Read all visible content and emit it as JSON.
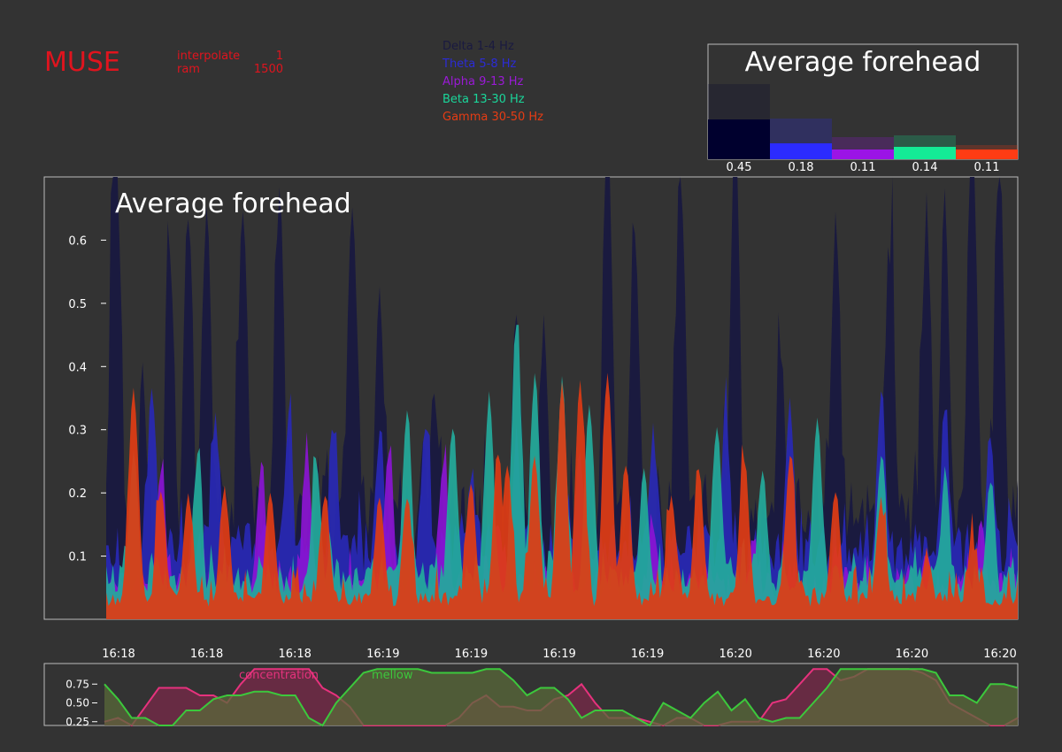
{
  "app": {
    "logo": "MUSE",
    "params": [
      {
        "name": "interpolate",
        "value": "1"
      },
      {
        "name": "ram",
        "value": "1500"
      }
    ]
  },
  "legend": [
    {
      "label": "Delta 1-4 Hz",
      "color": "#1a1a40"
    },
    {
      "label": "Theta 5-8 Hz",
      "color": "#2b2bd6"
    },
    {
      "label": "Alpha 9-13 Hz",
      "color": "#9a1ad6"
    },
    {
      "label": "Beta 13-30 Hz",
      "color": "#1ad69a"
    },
    {
      "label": "Gamma 30-50 Hz",
      "color": "#e63c14"
    }
  ],
  "chart_data": [
    {
      "type": "bar",
      "title": "Average forehead",
      "categories": [
        "Delta 1-4 Hz",
        "Theta 5-8 Hz",
        "Alpha 9-13 Hz",
        "Beta 13-30 Hz",
        "Gamma 30-50 Hz"
      ],
      "values": [
        0.45,
        0.18,
        0.11,
        0.14,
        0.11
      ],
      "value_labels": [
        "0.45",
        "0.18",
        "0.11",
        "0.14",
        "0.11"
      ],
      "previous_values": [
        0.85,
        0.46,
        0.25,
        0.27,
        0.16
      ],
      "colors": [
        "#00002e",
        "#2b2bff",
        "#9b14e6",
        "#14eb96",
        "#ff3c14"
      ]
    },
    {
      "type": "area",
      "title": "Average forehead",
      "stacking": "overlaid",
      "ylim": [
        0,
        0.7
      ],
      "yticks": [
        0.1,
        0.2,
        0.3,
        0.4,
        0.5,
        0.6
      ],
      "ytick_labels": [
        "0.1",
        "0.2",
        "0.3",
        "0.4",
        "0.5",
        "0.6"
      ],
      "xtick_labels": [
        "16:18",
        "16:18",
        "16:18",
        "16:19",
        "16:19",
        "16:19",
        "16:19",
        "16:20",
        "16:20",
        "16:20",
        "16:20"
      ],
      "x_range": [
        0,
        100
      ],
      "series": [
        {
          "name": "Delta 1-4 Hz",
          "color": "#1a1a3f",
          "baseline": 0.2,
          "amp": 0.38,
          "seed": 3,
          "peaks": [
            [
              1,
              0.82
            ],
            [
              4,
              0.35
            ],
            [
              7,
              0.52
            ],
            [
              9,
              0.61
            ],
            [
              11,
              0.62
            ],
            [
              15,
              0.63
            ],
            [
              19,
              0.65
            ],
            [
              27,
              0.63
            ],
            [
              30,
              0.47
            ],
            [
              36,
              0.34
            ],
            [
              45,
              0.48
            ],
            [
              48,
              0.41
            ],
            [
              52,
              0.33
            ],
            [
              55,
              0.79
            ],
            [
              58,
              0.6
            ],
            [
              63,
              0.7
            ],
            [
              69,
              0.72
            ],
            [
              74,
              0.4
            ],
            [
              80,
              0.58
            ],
            [
              86,
              0.56
            ],
            [
              90,
              0.62
            ],
            [
              92,
              0.63
            ],
            [
              95,
              0.82
            ],
            [
              98,
              0.69
            ]
          ]
        },
        {
          "name": "Theta 5-8 Hz",
          "color": "#2828b4",
          "baseline": 0.14,
          "amp": 0.16,
          "seed": 7,
          "peaks": [
            [
              5,
              0.34
            ],
            [
              12,
              0.3
            ],
            [
              20,
              0.29
            ],
            [
              25,
              0.29
            ],
            [
              30,
              0.27
            ],
            [
              35,
              0.3
            ],
            [
              40,
              0.2
            ],
            [
              45,
              0.27
            ],
            [
              52,
              0.24
            ],
            [
              60,
              0.28
            ],
            [
              68,
              0.3
            ],
            [
              75,
              0.32
            ],
            [
              85,
              0.3
            ],
            [
              92,
              0.3
            ],
            [
              97,
              0.27
            ]
          ]
        },
        {
          "name": "Alpha 9-13 Hz",
          "color": "#8a14d2",
          "baseline": 0.07,
          "amp": 0.13,
          "seed": 11,
          "peaks": [
            [
              6,
              0.22
            ],
            [
              17,
              0.23
            ],
            [
              22,
              0.24
            ],
            [
              31,
              0.26
            ],
            [
              37,
              0.24
            ],
            [
              43,
              0.14
            ],
            [
              60,
              0.14
            ],
            [
              71,
              0.12
            ],
            [
              80,
              0.1
            ],
            [
              90,
              0.09
            ],
            [
              96,
              0.14
            ]
          ]
        },
        {
          "name": "Beta 13-30 Hz",
          "color": "#23aa9b",
          "baseline": 0.08,
          "amp": 0.13,
          "seed": 17,
          "peaks": [
            [
              3,
              0.25
            ],
            [
              10,
              0.24
            ],
            [
              23,
              0.24
            ],
            [
              33,
              0.31
            ],
            [
              38,
              0.3
            ],
            [
              42,
              0.34
            ],
            [
              45,
              0.46
            ],
            [
              47,
              0.37
            ],
            [
              50,
              0.36
            ],
            [
              53,
              0.33
            ],
            [
              59,
              0.22
            ],
            [
              67,
              0.3
            ],
            [
              72,
              0.23
            ],
            [
              78,
              0.3
            ],
            [
              85,
              0.22
            ],
            [
              92,
              0.2
            ],
            [
              97,
              0.2
            ]
          ]
        },
        {
          "name": "Gamma 30-50 Hz",
          "color": "#e03c14",
          "baseline": 0.04,
          "amp": 0.13,
          "seed": 23,
          "peaks": [
            [
              3,
              0.36
            ],
            [
              6,
              0.2
            ],
            [
              9,
              0.19
            ],
            [
              13,
              0.2
            ],
            [
              18,
              0.2
            ],
            [
              24,
              0.19
            ],
            [
              30,
              0.19
            ],
            [
              33,
              0.19
            ],
            [
              40,
              0.21
            ],
            [
              43,
              0.26
            ],
            [
              44,
              0.24
            ],
            [
              47,
              0.25
            ],
            [
              50,
              0.37
            ],
            [
              52,
              0.37
            ],
            [
              55,
              0.38
            ],
            [
              57,
              0.24
            ],
            [
              62,
              0.19
            ],
            [
              65,
              0.23
            ],
            [
              70,
              0.25
            ],
            [
              75,
              0.24
            ],
            [
              80,
              0.2
            ],
            [
              85,
              0.18
            ],
            [
              90,
              0.1
            ],
            [
              95,
              0.12
            ]
          ]
        }
      ]
    },
    {
      "type": "line",
      "yticks": [
        0.25,
        0.5,
        0.75
      ],
      "ytick_labels": [
        "0.25",
        "0.50",
        "0.75"
      ],
      "ylim": [
        0.2,
        1.0
      ],
      "series": [
        {
          "name": "concentration",
          "color": "#e6327d",
          "fill": "#7a2a4a",
          "values": [
            0.25,
            0.3,
            0.2,
            0.45,
            0.7,
            0.7,
            0.7,
            0.6,
            0.6,
            0.5,
            0.75,
            0.95,
            0.95,
            0.95,
            0.95,
            0.95,
            0.7,
            0.6,
            0.45,
            0.2,
            0.2,
            0.2,
            0.2,
            0.2,
            0.2,
            0.2,
            0.3,
            0.5,
            0.6,
            0.45,
            0.45,
            0.4,
            0.4,
            0.55,
            0.6,
            0.75,
            0.5,
            0.3,
            0.3,
            0.3,
            0.25,
            0.2,
            0.3,
            0.3,
            0.2,
            0.2,
            0.25,
            0.25,
            0.25,
            0.5,
            0.55,
            0.75,
            0.95,
            0.95,
            0.8,
            0.85,
            0.95,
            0.95,
            0.95,
            0.95,
            0.9,
            0.8,
            0.5,
            0.4,
            0.3,
            0.2,
            0.2,
            0.3
          ]
        },
        {
          "name": "mellow",
          "color": "#3cc83c",
          "fill": "#5a6a3a",
          "values": [
            0.75,
            0.55,
            0.3,
            0.3,
            0.2,
            0.2,
            0.4,
            0.4,
            0.55,
            0.6,
            0.6,
            0.65,
            0.65,
            0.6,
            0.6,
            0.3,
            0.2,
            0.5,
            0.7,
            0.9,
            0.95,
            0.95,
            0.95,
            0.95,
            0.9,
            0.9,
            0.9,
            0.9,
            0.95,
            0.95,
            0.8,
            0.6,
            0.7,
            0.7,
            0.55,
            0.3,
            0.4,
            0.4,
            0.4,
            0.3,
            0.2,
            0.5,
            0.4,
            0.3,
            0.5,
            0.65,
            0.4,
            0.55,
            0.3,
            0.25,
            0.3,
            0.3,
            0.5,
            0.7,
            0.95,
            0.95,
            0.95,
            0.95,
            0.95,
            0.95,
            0.95,
            0.9,
            0.6,
            0.6,
            0.5,
            0.75,
            0.75,
            0.7
          ]
        }
      ]
    }
  ]
}
